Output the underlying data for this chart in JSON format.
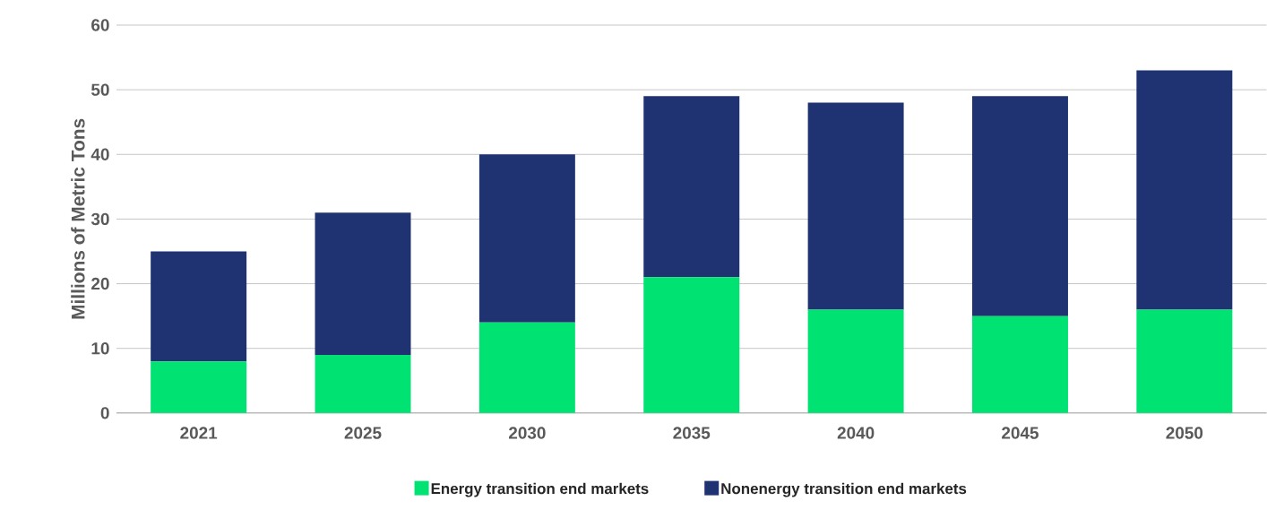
{
  "chart_data": {
    "type": "bar",
    "stacked": true,
    "ylabel": "Millions of Metric Tons",
    "categories": [
      "2021",
      "2025",
      "2030",
      "2035",
      "2040",
      "2045",
      "2050"
    ],
    "series": [
      {
        "name": "Energy transition end markets",
        "color": "#00e272",
        "values": [
          8,
          9,
          14,
          21,
          16,
          15,
          16
        ]
      },
      {
        "name": "Nonenergy transition end markets",
        "color": "#1f3372",
        "values": [
          17,
          22,
          26,
          28,
          32,
          34,
          37
        ]
      }
    ],
    "ylim": [
      0,
      60
    ],
    "yticks": [
      0,
      10,
      20,
      30,
      40,
      50,
      60
    ],
    "grid": "y",
    "legend": "bottom"
  }
}
